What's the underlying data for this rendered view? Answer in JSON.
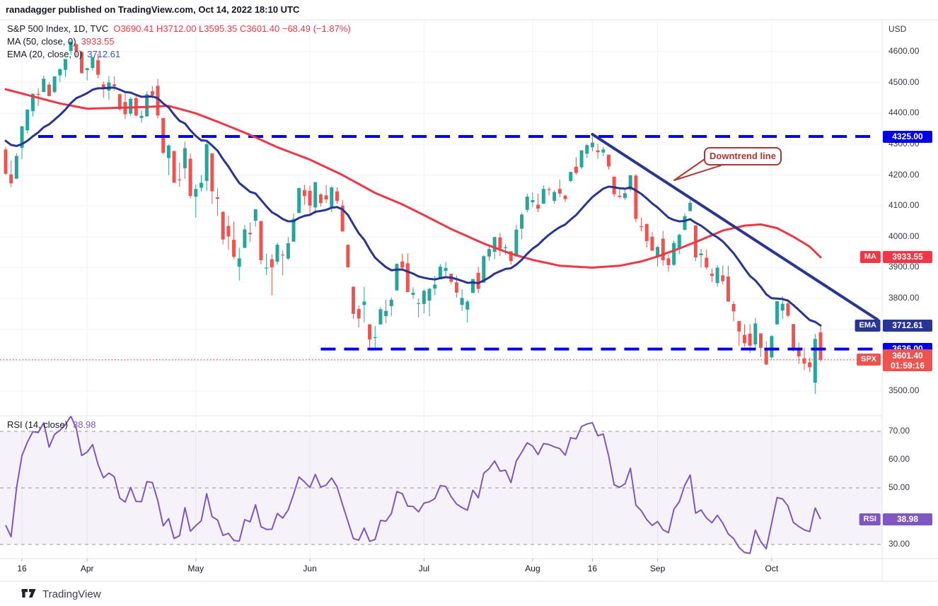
{
  "header": {
    "title": "ranadagger published on TradingView.com, Oct 14, 2022 18:10 UTC"
  },
  "legend": {
    "symbol": "S&P 500 Index, 1D, TVC",
    "ohlc": "O3690.41  H3712.00  L3595.35  C3601.40  −68.49 (−1.87%)",
    "ma_label": "MA (50, close, 0)",
    "ma_value": "3933.55",
    "ema_label": "EMA (20, close, 0)",
    "ema_value": "3712.61"
  },
  "rsi_legend": {
    "label": "RSI (14, close)",
    "value": "38.98"
  },
  "axis": {
    "currency": "USD"
  },
  "badges": {
    "resistance": "4325.00",
    "ma_chip": "MA",
    "ma_value": "3933.55",
    "ema_chip": "EMA",
    "ema_value": "3712.61",
    "support": "3636.00",
    "spx_chip": "SPX",
    "spx_price": "3601.40",
    "spx_countdown": "01:59:16",
    "rsi_chip": "RSI",
    "rsi_value": "38.98"
  },
  "callout": {
    "text": "Downtrend line"
  },
  "watermark": {
    "brand": "TradingView"
  },
  "colors": {
    "up": "#26a69a",
    "down": "#ef5350",
    "ma": "#f23645",
    "ema": "#283593",
    "trend": "#283593",
    "hline": "#0101f0",
    "rsi": "#7e57c2",
    "grid": "#eef2f9",
    "frame": "#e0e3eb",
    "rsi_band": "rgba(126,87,194,0.08)"
  },
  "chart_data": {
    "type": "candlestick",
    "symbol": "S&P 500 Index",
    "interval": "1D",
    "exchange": "TVC",
    "last": {
      "open": 3690.41,
      "high": 3712.0,
      "low": 3595.35,
      "close": 3601.4,
      "change": -68.49,
      "change_pct": -1.87,
      "countdown": "01:59:16"
    },
    "price_axis": {
      "currency": "USD",
      "ticks": [
        4600,
        4500,
        4400,
        4300,
        4200,
        4100,
        4000,
        3900,
        3800,
        3700,
        3600,
        3500
      ],
      "ylim": [
        3420,
        4700
      ]
    },
    "time_axis": {
      "ticks": [
        {
          "label": "16",
          "index": 3
        },
        {
          "label": "Apr",
          "index": 15
        },
        {
          "label": "May",
          "index": 35
        },
        {
          "label": "Jun",
          "index": 56
        },
        {
          "label": "Jul",
          "index": 77
        },
        {
          "label": "Aug",
          "index": 97
        },
        {
          "label": "16",
          "index": 108
        },
        {
          "label": "Sep",
          "index": 120
        },
        {
          "label": "Oct",
          "index": 141
        }
      ]
    },
    "candles": [
      [
        4283,
        4291,
        4200,
        4204
      ],
      [
        4202,
        4247,
        4161,
        4173
      ],
      [
        4188,
        4271,
        4188,
        4262
      ],
      [
        4288,
        4358,
        4251,
        4358
      ],
      [
        4345,
        4412,
        4335,
        4412
      ],
      [
        4407,
        4465,
        4390,
        4463
      ],
      [
        4463,
        4481,
        4424,
        4461
      ],
      [
        4469,
        4522,
        4469,
        4512
      ],
      [
        4493,
        4501,
        4455,
        4456
      ],
      [
        4469,
        4520,
        4465,
        4520
      ],
      [
        4523,
        4546,
        4501,
        4543
      ],
      [
        4541,
        4576,
        4518,
        4576
      ],
      [
        4602,
        4637,
        4589,
        4632
      ],
      [
        4624,
        4627,
        4581,
        4602
      ],
      [
        4599,
        4603,
        4530,
        4530
      ],
      [
        4540,
        4548,
        4507,
        4546
      ],
      [
        4547,
        4583,
        4539,
        4583
      ],
      [
        4572,
        4593,
        4514,
        4525
      ],
      [
        4494,
        4503,
        4450,
        4481
      ],
      [
        4474,
        4521,
        4444,
        4500
      ],
      [
        4494,
        4520,
        4474,
        4488
      ],
      [
        4462,
        4464,
        4408,
        4413
      ],
      [
        4437,
        4471,
        4381,
        4397
      ],
      [
        4399,
        4453,
        4392,
        4447
      ],
      [
        4449,
        4460,
        4390,
        4393
      ],
      [
        4385,
        4410,
        4370,
        4392
      ],
      [
        4390,
        4471,
        4390,
        4462
      ],
      [
        4472,
        4488,
        4448,
        4459
      ],
      [
        4489,
        4512,
        4384,
        4393
      ],
      [
        4385,
        4385,
        4267,
        4272
      ],
      [
        4255,
        4299,
        4200,
        4296
      ],
      [
        4278,
        4278,
        4175,
        4175
      ],
      [
        4186,
        4240,
        4162,
        4184
      ],
      [
        4222,
        4308,
        4188,
        4287
      ],
      [
        4253,
        4270,
        4124,
        4132
      ],
      [
        4130,
        4169,
        4062,
        4155
      ],
      [
        4159,
        4200,
        4147,
        4175
      ],
      [
        4181,
        4307,
        4148,
        4300
      ],
      [
        4270,
        4271,
        4106,
        4147
      ],
      [
        4128,
        4157,
        4067,
        4123
      ],
      [
        4081,
        4082,
        3975,
        3991
      ],
      [
        4035,
        4068,
        3958,
        4001
      ],
      [
        3990,
        4049,
        3928,
        3935
      ],
      [
        3903,
        3964,
        3858,
        3930
      ],
      [
        3964,
        4038,
        3963,
        4024
      ],
      [
        4013,
        4046,
        3983,
        4008
      ],
      [
        4052,
        4090,
        4033,
        4089
      ],
      [
        4051,
        4051,
        3911,
        3924
      ],
      [
        3899,
        3945,
        3876,
        3900
      ],
      [
        3927,
        3943,
        3810,
        3901
      ],
      [
        3919,
        3981,
        3909,
        3974
      ],
      [
        3942,
        3955,
        3875,
        3941
      ],
      [
        3929,
        3999,
        3925,
        3979
      ],
      [
        3984,
        4075,
        3984,
        4058
      ],
      [
        4077,
        4158,
        4077,
        4158
      ],
      [
        4151,
        4168,
        4104,
        4132
      ],
      [
        4149,
        4166,
        4074,
        4101
      ],
      [
        4095,
        4177,
        4074,
        4177
      ],
      [
        4137,
        4142,
        4098,
        4109
      ],
      [
        4134,
        4168,
        4109,
        4121
      ],
      [
        4096,
        4164,
        4080,
        4160
      ],
      [
        4147,
        4160,
        4107,
        4116
      ],
      [
        4101,
        4119,
        4017,
        4017
      ],
      [
        3974,
        3975,
        3900,
        3901
      ],
      [
        3838,
        3839,
        3734,
        3750
      ],
      [
        3766,
        3778,
        3706,
        3735
      ],
      [
        3779,
        3838,
        3722,
        3790
      ],
      [
        3716,
        3716,
        3639,
        3667
      ],
      [
        3672,
        3711,
        3636,
        3675
      ],
      [
        3716,
        3772,
        3716,
        3765
      ],
      [
        3743,
        3796,
        3720,
        3760
      ],
      [
        3775,
        3804,
        3743,
        3796
      ],
      [
        3826,
        3914,
        3826,
        3912
      ],
      [
        3920,
        3945,
        3892,
        3900
      ],
      [
        3914,
        3946,
        3820,
        3821
      ],
      [
        3812,
        3836,
        3799,
        3819
      ],
      [
        3785,
        3800,
        3739,
        3785
      ],
      [
        3782,
        3830,
        3752,
        3825
      ],
      [
        3793,
        3835,
        3742,
        3831
      ],
      [
        3832,
        3873,
        3810,
        3845
      ],
      [
        3862,
        3911,
        3862,
        3903
      ],
      [
        3889,
        3918,
        3869,
        3899
      ],
      [
        3880,
        3881,
        3847,
        3854
      ],
      [
        3852,
        3874,
        3803,
        3819
      ],
      [
        3779,
        3830,
        3759,
        3802
      ],
      [
        3764,
        3796,
        3722,
        3790
      ],
      [
        3818,
        3863,
        3817,
        3863
      ],
      [
        3883,
        3902,
        3818,
        3831
      ],
      [
        3851,
        3940,
        3851,
        3937
      ],
      [
        3936,
        3974,
        3922,
        3960
      ],
      [
        3951,
        4000,
        3927,
        3999
      ],
      [
        3998,
        4012,
        3938,
        3962
      ],
      [
        3965,
        3975,
        3943,
        3966
      ],
      [
        3953,
        3953,
        3910,
        3921
      ],
      [
        3936,
        4039,
        3936,
        4023
      ],
      [
        4026,
        4078,
        3992,
        4072
      ],
      [
        4087,
        4140,
        4079,
        4130
      ],
      [
        4112,
        4144,
        4096,
        4119
      ],
      [
        4104,
        4140,
        4079,
        4091
      ],
      [
        4107,
        4167,
        4107,
        4155
      ],
      [
        4154,
        4161,
        4135,
        4152
      ],
      [
        4116,
        4151,
        4107,
        4145
      ],
      [
        4155,
        4186,
        4128,
        4140
      ],
      [
        4133,
        4137,
        4112,
        4122
      ],
      [
        4181,
        4211,
        4177,
        4210
      ],
      [
        4227,
        4257,
        4201,
        4207
      ],
      [
        4225,
        4280,
        4219,
        4280
      ],
      [
        4269,
        4301,
        4256,
        4297
      ],
      [
        4290,
        4325,
        4277,
        4305
      ],
      [
        4280,
        4302,
        4253,
        4274
      ],
      [
        4273,
        4292,
        4261,
        4283
      ],
      [
        4266,
        4266,
        4218,
        4228
      ],
      [
        4195,
        4195,
        4129,
        4138
      ],
      [
        4133,
        4159,
        4124,
        4129
      ],
      [
        4126,
        4156,
        4119,
        4141
      ],
      [
        4153,
        4200,
        4147,
        4199
      ],
      [
        4198,
        4203,
        4048,
        4058
      ],
      [
        4034,
        4062,
        4017,
        4031
      ],
      [
        4041,
        4044,
        3965,
        3986
      ],
      [
        4000,
        4015,
        3954,
        3955
      ],
      [
        3936,
        3971,
        3904,
        3967
      ],
      [
        3994,
        4019,
        3906,
        3924
      ],
      [
        3930,
        3942,
        3886,
        3908
      ],
      [
        3909,
        3987,
        3906,
        3980
      ],
      [
        3959,
        4010,
        3944,
        4006
      ],
      [
        4022,
        4076,
        4022,
        4067
      ],
      [
        4083,
        4119,
        4083,
        4110
      ],
      [
        4037,
        4037,
        3921,
        3933
      ],
      [
        3940,
        3961,
        3900,
        3946
      ],
      [
        3932,
        3959,
        3894,
        3901
      ],
      [
        3880,
        3897,
        3853,
        3873
      ],
      [
        3850,
        3908,
        3838,
        3900
      ],
      [
        3875,
        3907,
        3845,
        3856
      ],
      [
        3871,
        3907,
        3789,
        3790
      ],
      [
        3782,
        3790,
        3727,
        3758
      ],
      [
        3727,
        3727,
        3647,
        3693
      ],
      [
        3682,
        3716,
        3644,
        3655
      ],
      [
        3686,
        3717,
        3623,
        3647
      ],
      [
        3651,
        3737,
        3641,
        3719
      ],
      [
        3687,
        3687,
        3610,
        3640
      ],
      [
        3633,
        3661,
        3584,
        3586
      ],
      [
        3609,
        3681,
        3604,
        3678
      ],
      [
        3716,
        3792,
        3716,
        3791
      ],
      [
        3761,
        3807,
        3733,
        3783
      ],
      [
        3784,
        3798,
        3739,
        3744
      ],
      [
        3717,
        3717,
        3628,
        3640
      ],
      [
        3633,
        3657,
        3588,
        3612
      ],
      [
        3606,
        3641,
        3568,
        3589
      ],
      [
        3593,
        3608,
        3562,
        3577
      ],
      [
        3527,
        3685,
        3491,
        3669
      ],
      [
        3690,
        3712,
        3595,
        3601
      ]
    ],
    "ma50": {
      "period": 50,
      "value": 3933.55,
      "keypoints": [
        [
          0,
          4478
        ],
        [
          10,
          4432
        ],
        [
          15,
          4415
        ],
        [
          25,
          4420
        ],
        [
          30,
          4424
        ],
        [
          35,
          4400
        ],
        [
          40,
          4366
        ],
        [
          45,
          4330
        ],
        [
          50,
          4290
        ],
        [
          56,
          4250
        ],
        [
          62,
          4200
        ],
        [
          68,
          4142
        ],
        [
          73,
          4105
        ],
        [
          77,
          4070
        ],
        [
          82,
          4025
        ],
        [
          88,
          3978
        ],
        [
          93,
          3945
        ],
        [
          97,
          3925
        ],
        [
          102,
          3906
        ],
        [
          108,
          3900
        ],
        [
          113,
          3906
        ],
        [
          117,
          3920
        ],
        [
          120,
          3936
        ],
        [
          124,
          3962
        ],
        [
          128,
          3990
        ],
        [
          132,
          4020
        ],
        [
          136,
          4036
        ],
        [
          139,
          4040
        ],
        [
          142,
          4028
        ],
        [
          145,
          4000
        ],
        [
          148,
          3968
        ],
        [
          150,
          3933.55
        ]
      ]
    },
    "ema20": {
      "period": 20,
      "value": 3712.61,
      "seed": 4322
    },
    "rsi": {
      "period": 14,
      "value": 38.98,
      "levels_dashed": [
        70,
        50,
        30
      ],
      "levels_grid": [
        60,
        40
      ],
      "axis_labels": [
        70,
        60,
        50,
        30
      ],
      "seed_avg_gain": 7.0,
      "seed_avg_loss": 12.0,
      "ylim": [
        25,
        75
      ]
    },
    "hlines": [
      {
        "price": 4325.0,
        "from_index": 6,
        "role": "resistance"
      },
      {
        "price": 3636.0,
        "from_index": 58,
        "role": "support"
      }
    ],
    "trendline": {
      "from": {
        "index": 108,
        "price": 4332
      },
      "to": {
        "index": 160.5,
        "price": 3731
      },
      "label": "Downtrend line"
    },
    "last_price_line": 3601.4
  }
}
